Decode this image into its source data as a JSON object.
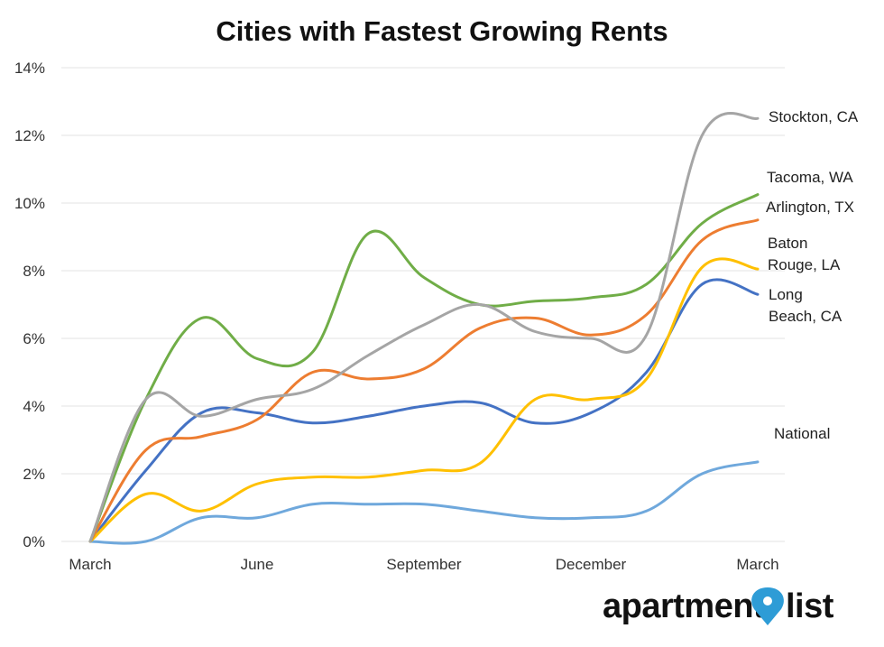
{
  "chart_data": {
    "type": "line",
    "title": "Cities with Fastest Growing Rents",
    "xlabel": "",
    "ylabel": "",
    "x": [
      "March",
      "April",
      "May",
      "June",
      "July",
      "August",
      "September",
      "October",
      "November",
      "December",
      "January",
      "February",
      "March"
    ],
    "x_tick_labels": [
      "March",
      "June",
      "September",
      "December",
      "March"
    ],
    "x_tick_indices": [
      0,
      3,
      6,
      9,
      12
    ],
    "y_tick_labels": [
      "0%",
      "2%",
      "4%",
      "6%",
      "8%",
      "10%",
      "12%",
      "14%"
    ],
    "ylim": [
      0,
      14
    ],
    "y_unit": "%",
    "grid": true,
    "legend": "none (series labels at right end of lines)",
    "series": [
      {
        "name": "National",
        "label_lines": [
          "National"
        ],
        "color": "#6fa8dc",
        "values": [
          0,
          0,
          0.7,
          0.7,
          1.1,
          1.1,
          1.1,
          0.9,
          0.7,
          0.7,
          0.9,
          2.0,
          2.35
        ]
      },
      {
        "name": "Long Beach, CA",
        "label_lines": [
          "Long",
          "Beach, CA"
        ],
        "color": "#4472c4",
        "values": [
          0,
          2.1,
          3.8,
          3.8,
          3.5,
          3.7,
          4.0,
          4.1,
          3.5,
          3.8,
          5.0,
          7.6,
          7.3
        ]
      },
      {
        "name": "Baton Rouge, LA",
        "label_lines": [
          "Baton",
          "Rouge, LA"
        ],
        "color": "#ffc000",
        "values": [
          0,
          1.4,
          0.9,
          1.7,
          1.9,
          1.9,
          2.1,
          2.3,
          4.2,
          4.2,
          4.8,
          8.1,
          8.05
        ]
      },
      {
        "name": "Arlington, TX",
        "label_lines": [
          "Arlington, TX"
        ],
        "color": "#ed7d31",
        "values": [
          0,
          2.7,
          3.1,
          3.6,
          5.0,
          4.8,
          5.1,
          6.3,
          6.6,
          6.1,
          6.7,
          8.9,
          9.5
        ]
      },
      {
        "name": "Tacoma, WA",
        "label_lines": [
          "Tacoma, WA"
        ],
        "color": "#70ad47",
        "values": [
          0,
          4.2,
          6.6,
          5.4,
          5.6,
          9.1,
          7.8,
          7.0,
          7.1,
          7.2,
          7.6,
          9.4,
          10.25
        ]
      },
      {
        "name": "Stockton, CA",
        "label_lines": [
          "Stockton, CA"
        ],
        "color": "#a5a5a5",
        "values": [
          0,
          4.2,
          3.7,
          4.2,
          4.5,
          5.5,
          6.4,
          7.0,
          6.2,
          6.0,
          6.1,
          12.0,
          12.5
        ]
      }
    ]
  },
  "brand": {
    "name_left": "apartment",
    "name_right": "list",
    "pin_color": "#2e9cd6"
  }
}
